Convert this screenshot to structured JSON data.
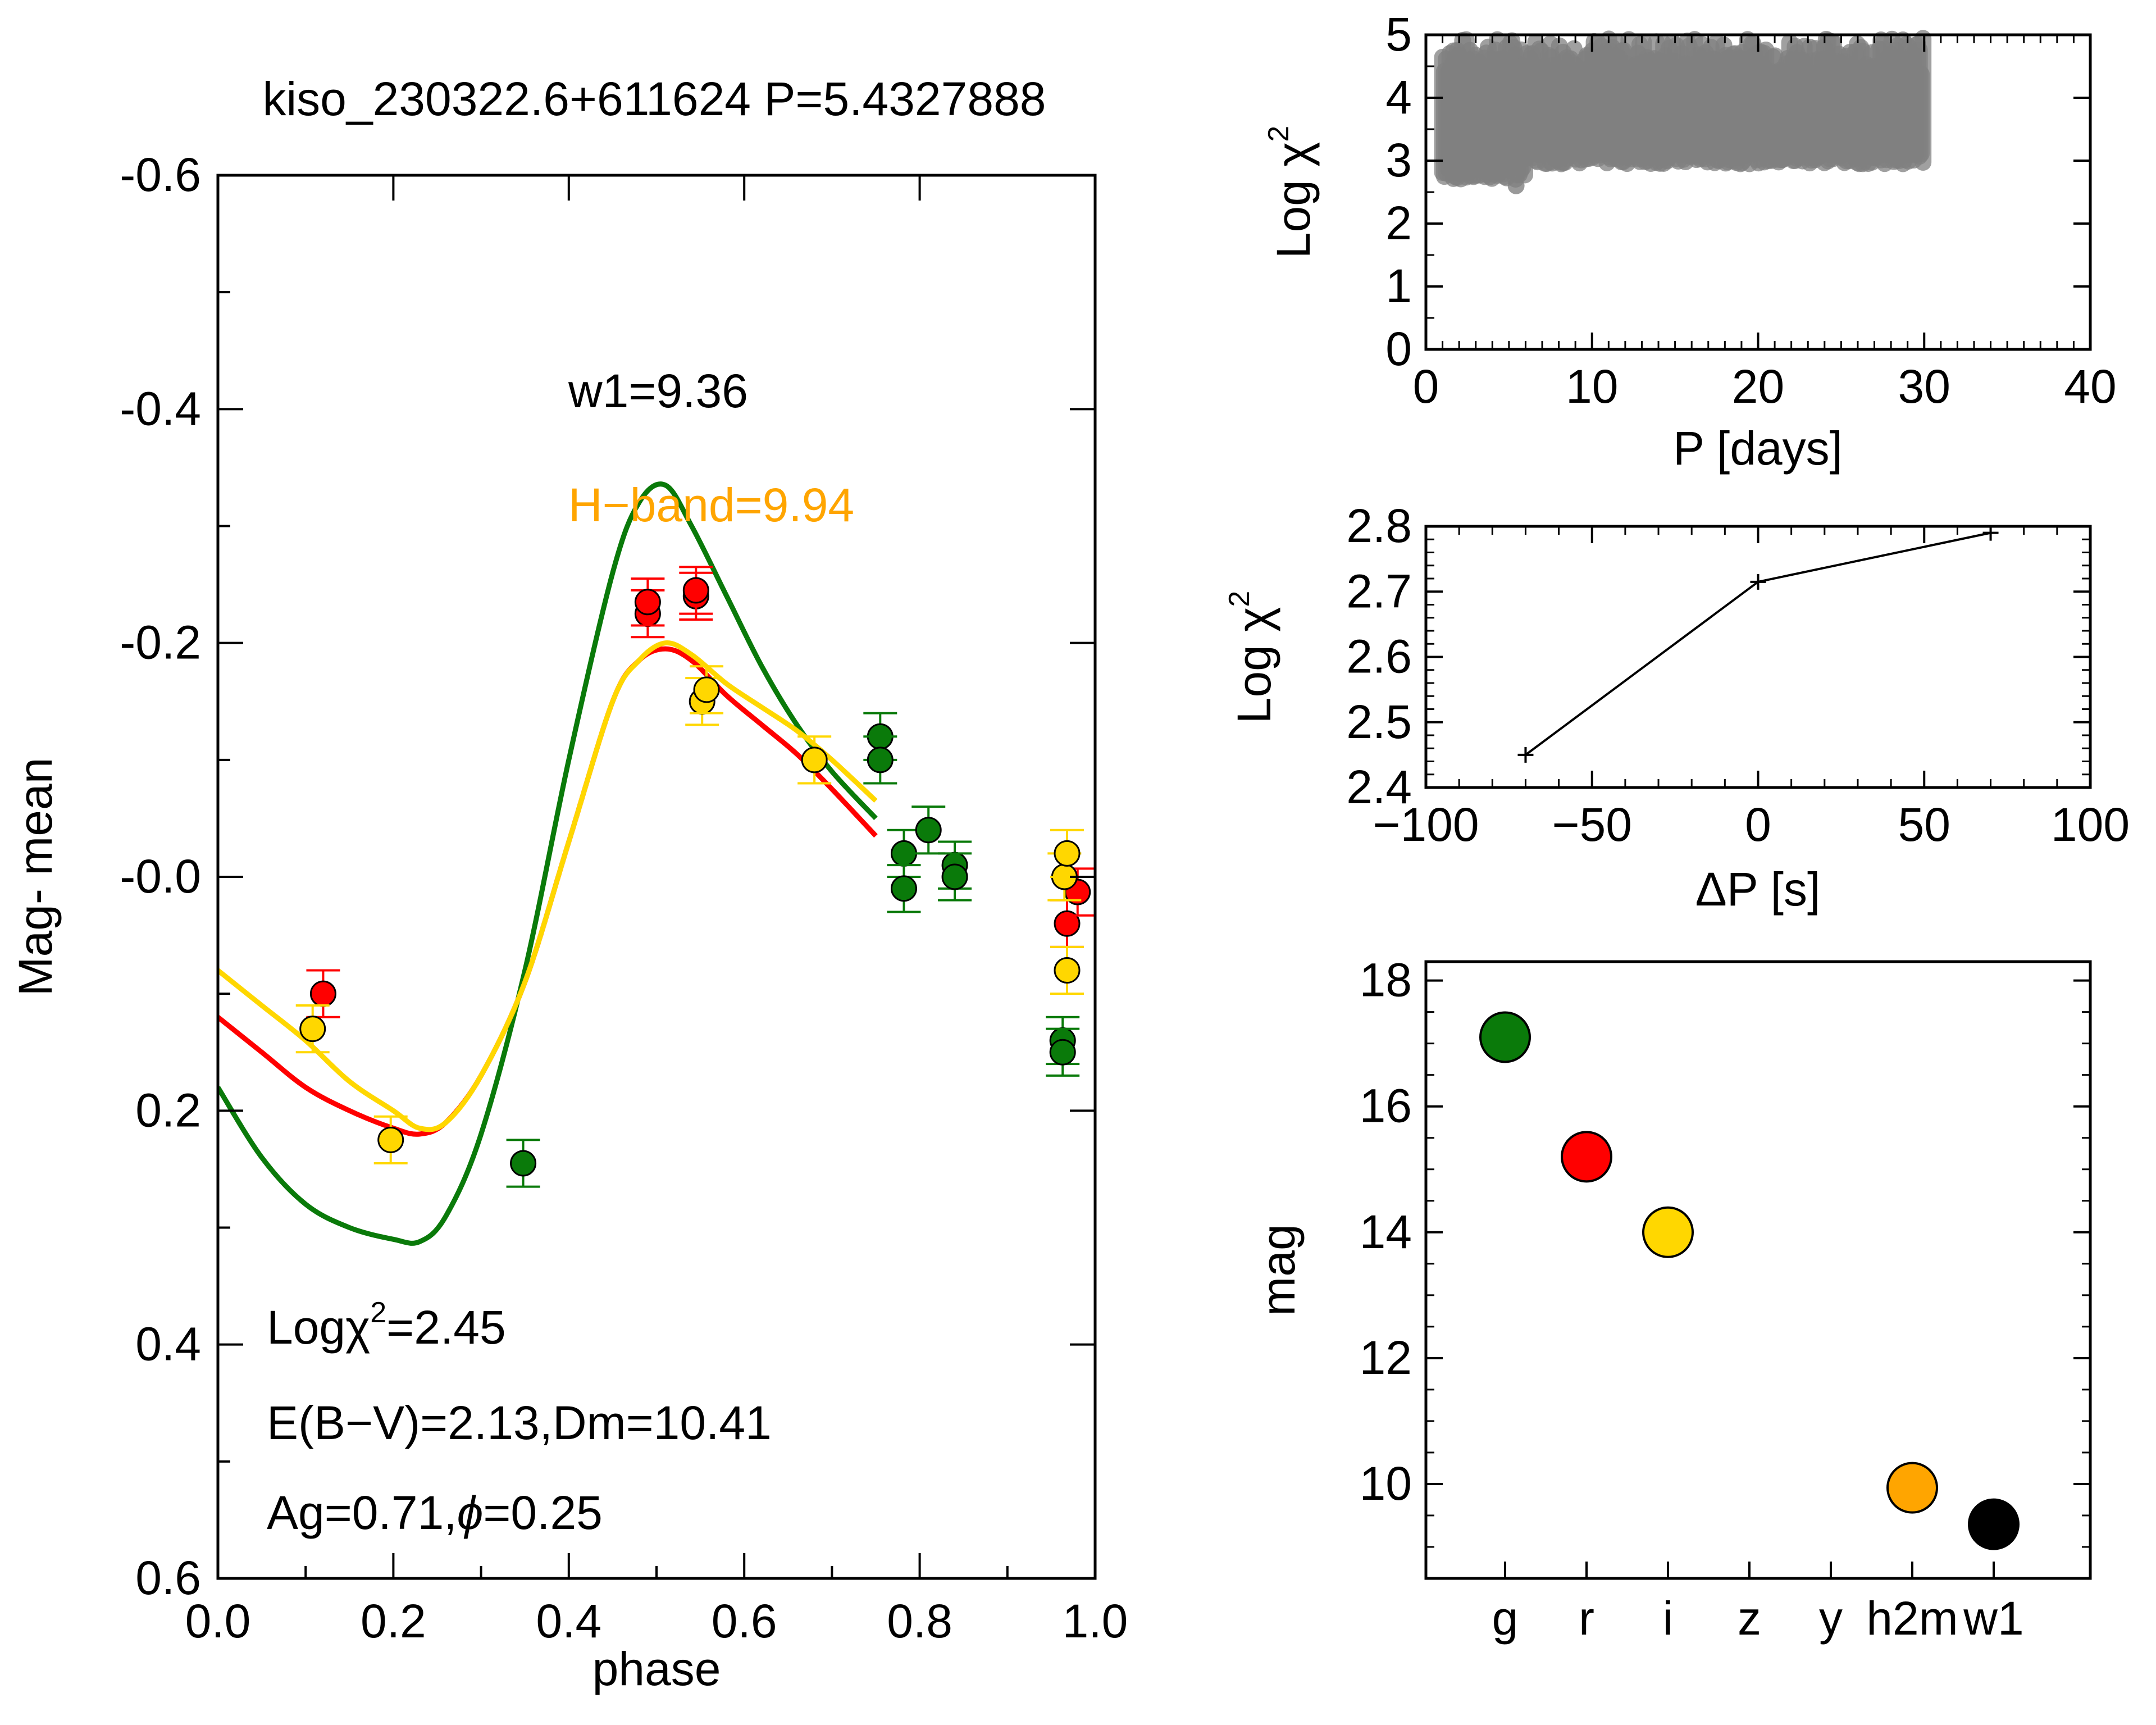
{
  "colors": {
    "g": "#0a7a0a",
    "r": "#ff0000",
    "i": "#ffd700",
    "h": "#ffa500",
    "w1": "#000000",
    "scan": "#808080"
  },
  "chart_data": [
    {
      "type": "scatter",
      "title": "kiso_230322.6+611624 P=5.4327888",
      "xlabel": "phase",
      "ylabel": "Mag- mean",
      "xlim": [
        0,
        1
      ],
      "ylim": [
        0.6,
        -0.6
      ],
      "y_inverted": true,
      "xticks": [
        "0.0",
        "0.2",
        "0.4",
        "0.6",
        "0.8",
        "1.0"
      ],
      "yticks": [
        "-0.6",
        "-0.4",
        "-0.2",
        "-0.0",
        "0.2",
        "0.4",
        "0.6"
      ],
      "annotations": {
        "w1": "w1=9.36",
        "hband": "H−band=9.94",
        "chi_prefix": "Logχ",
        "chi_sup": "2",
        "chi_value": "=2.45",
        "ebv": "E(B−V)=2.13,Dm=10.41",
        "ag_prefix": "Ag=0.71,",
        "ag_phi": "ϕ",
        "ag_value": "=0.25"
      },
      "grid": false,
      "lines": [
        {
          "band": "g",
          "color": "#0a7a0a",
          "x": [
            0.0,
            0.05,
            0.1,
            0.15,
            0.2,
            0.23,
            0.26,
            0.3,
            0.35,
            0.4,
            0.45,
            0.48,
            0.51,
            0.54,
            0.58,
            0.62,
            0.66,
            0.7,
            0.75
          ],
          "y": [
            0.18,
            0.24,
            0.28,
            0.3,
            0.31,
            0.312,
            0.29,
            0.22,
            0.08,
            -0.1,
            -0.26,
            -0.32,
            -0.335,
            -0.3,
            -0.24,
            -0.18,
            -0.13,
            -0.09,
            -0.05
          ]
        },
        {
          "band": "r",
          "color": "#ff0000",
          "x": [
            0.0,
            0.05,
            0.1,
            0.15,
            0.2,
            0.23,
            0.26,
            0.3,
            0.35,
            0.4,
            0.45,
            0.48,
            0.51,
            0.54,
            0.58,
            0.62,
            0.66,
            0.7,
            0.75
          ],
          "y": [
            0.12,
            0.15,
            0.18,
            0.2,
            0.215,
            0.22,
            0.21,
            0.17,
            0.09,
            -0.03,
            -0.15,
            -0.185,
            -0.195,
            -0.185,
            -0.155,
            -0.13,
            -0.105,
            -0.075,
            -0.035
          ]
        },
        {
          "band": "i",
          "color": "#ffd700",
          "x": [
            0.0,
            0.05,
            0.1,
            0.15,
            0.2,
            0.23,
            0.26,
            0.3,
            0.35,
            0.4,
            0.45,
            0.48,
            0.51,
            0.54,
            0.58,
            0.62,
            0.66,
            0.7,
            0.75
          ],
          "y": [
            0.08,
            0.11,
            0.14,
            0.175,
            0.2,
            0.215,
            0.21,
            0.17,
            0.09,
            -0.03,
            -0.15,
            -0.185,
            -0.2,
            -0.19,
            -0.165,
            -0.145,
            -0.125,
            -0.1,
            -0.065
          ]
        }
      ],
      "points": [
        {
          "band": "g",
          "color": "#0a7a0a",
          "x": [
            0.348,
            0.755,
            0.755,
            0.782,
            0.782,
            0.81,
            0.84,
            0.84,
            0.963,
            0.963
          ],
          "y": [
            0.245,
            -0.12,
            -0.1,
            -0.02,
            0.01,
            -0.04,
            -0.01,
            0.0,
            0.14,
            0.15
          ],
          "err": 0.02
        },
        {
          "band": "r",
          "color": "#ff0000",
          "x": [
            0.12,
            0.49,
            0.49,
            0.545,
            0.545,
            0.968,
            0.98
          ],
          "y": [
            0.1,
            -0.225,
            -0.235,
            -0.24,
            -0.245,
            0.04,
            0.013
          ],
          "err": 0.02
        },
        {
          "band": "i",
          "color": "#ffd700",
          "x": [
            0.108,
            0.197,
            0.552,
            0.557,
            0.68,
            0.965,
            0.968,
            0.968
          ],
          "y": [
            0.13,
            0.225,
            -0.15,
            -0.16,
            -0.1,
            0.0,
            -0.02,
            0.08
          ],
          "err": 0.02
        }
      ]
    },
    {
      "type": "scatter",
      "xlabel": "P [days]",
      "ylabel_prefix": "Log χ",
      "ylabel_sup": "2",
      "xlim": [
        0,
        40
      ],
      "ylim": [
        0,
        5
      ],
      "xticks": [
        "0",
        "10",
        "20",
        "30",
        "40"
      ],
      "yticks": [
        "0",
        "1",
        "2",
        "3",
        "4",
        "5"
      ],
      "scan_range_days": [
        1,
        30
      ],
      "log_chi2_range": [
        2.6,
        5.0
      ]
    },
    {
      "type": "line",
      "xlabel": "ΔP [s]",
      "ylabel_prefix": "Log χ",
      "ylabel_sup": "2",
      "xlim": [
        -100,
        100
      ],
      "ylim": [
        2.4,
        2.8
      ],
      "xticks": [
        "−100",
        "−50",
        "0",
        "50",
        "100"
      ],
      "yticks": [
        "2.4",
        "2.5",
        "2.6",
        "2.7",
        "2.8"
      ],
      "x": [
        -70,
        0,
        70
      ],
      "y": [
        2.45,
        2.715,
        2.79
      ]
    },
    {
      "type": "scatter",
      "ylabel": "mag",
      "ylim": [
        8.5,
        18.3
      ],
      "yticks": [
        "10",
        "12",
        "14",
        "16",
        "18"
      ],
      "categories": [
        "g",
        "r",
        "i",
        "z",
        "y",
        "h2m",
        "w1"
      ],
      "values": [
        17.1,
        15.2,
        14.0,
        null,
        null,
        9.94,
        9.36
      ],
      "point_colors": [
        "#0a7a0a",
        "#ff0000",
        "#ffd700",
        null,
        null,
        "#ffa500",
        "#000000"
      ]
    }
  ]
}
